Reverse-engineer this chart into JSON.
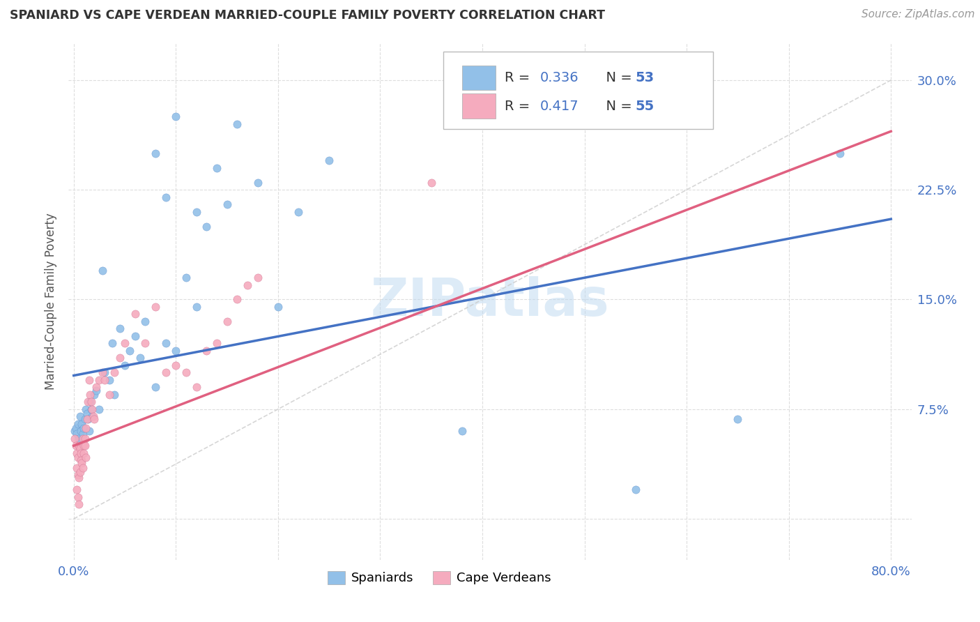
{
  "title": "SPANIARD VS CAPE VERDEAN MARRIED-COUPLE FAMILY POVERTY CORRELATION CHART",
  "source": "Source: ZipAtlas.com",
  "ylabel": "Married-Couple Family Poverty",
  "xlim": [
    -0.005,
    0.82
  ],
  "ylim": [
    -0.028,
    0.325
  ],
  "xtick_vals": [
    0.0,
    0.1,
    0.2,
    0.3,
    0.4,
    0.5,
    0.6,
    0.7,
    0.8
  ],
  "xticklabels": [
    "0.0%",
    "",
    "",
    "",
    "",
    "",
    "",
    "",
    "80.0%"
  ],
  "ytick_vals": [
    0.0,
    0.075,
    0.15,
    0.225,
    0.3
  ],
  "yticklabels_right": [
    "",
    "7.5%",
    "15.0%",
    "22.5%",
    "30.0%"
  ],
  "spaniard_color": "#92C0E8",
  "cape_verdean_color": "#F5ABBE",
  "trend_spaniard_color": "#4472C4",
  "trend_cape_verdean_color": "#E06080",
  "trend_diagonal_color": "#CCCCCC",
  "legend_r_blue": "0.336",
  "legend_n_blue": "53",
  "legend_r_pink": "0.417",
  "legend_n_pink": "55",
  "watermark": "ZIPatlas",
  "blue_trend_x0": 0.0,
  "blue_trend_y0": 0.098,
  "blue_trend_x1": 0.8,
  "blue_trend_y1": 0.205,
  "pink_trend_x0": 0.0,
  "pink_trend_y0": 0.05,
  "pink_trend_x1": 0.8,
  "pink_trend_y1": 0.265,
  "spaniard_x": [
    0.001,
    0.002,
    0.003,
    0.004,
    0.005,
    0.006,
    0.007,
    0.008,
    0.009,
    0.01,
    0.011,
    0.012,
    0.013,
    0.014,
    0.015,
    0.016,
    0.017,
    0.018,
    0.02,
    0.022,
    0.025,
    0.028,
    0.03,
    0.035,
    0.038,
    0.04,
    0.045,
    0.05,
    0.055,
    0.06,
    0.065,
    0.07,
    0.08,
    0.09,
    0.1,
    0.11,
    0.12,
    0.13,
    0.14,
    0.15,
    0.16,
    0.18,
    0.2,
    0.22,
    0.25,
    0.08,
    0.09,
    0.1,
    0.12,
    0.38,
    0.55,
    0.65,
    0.75
  ],
  "spaniard_y": [
    0.06,
    0.062,
    0.058,
    0.065,
    0.055,
    0.07,
    0.06,
    0.065,
    0.058,
    0.062,
    0.068,
    0.075,
    0.072,
    0.068,
    0.06,
    0.08,
    0.075,
    0.07,
    0.085,
    0.088,
    0.075,
    0.17,
    0.1,
    0.095,
    0.12,
    0.085,
    0.13,
    0.105,
    0.115,
    0.125,
    0.11,
    0.135,
    0.09,
    0.12,
    0.115,
    0.165,
    0.145,
    0.2,
    0.24,
    0.215,
    0.27,
    0.23,
    0.145,
    0.21,
    0.245,
    0.25,
    0.22,
    0.275,
    0.21,
    0.06,
    0.02,
    0.068,
    0.25
  ],
  "cape_verdean_x": [
    0.001,
    0.002,
    0.003,
    0.004,
    0.005,
    0.006,
    0.007,
    0.008,
    0.009,
    0.01,
    0.011,
    0.012,
    0.013,
    0.014,
    0.015,
    0.016,
    0.017,
    0.018,
    0.019,
    0.02,
    0.022,
    0.025,
    0.028,
    0.03,
    0.035,
    0.04,
    0.045,
    0.05,
    0.06,
    0.07,
    0.08,
    0.09,
    0.1,
    0.11,
    0.12,
    0.13,
    0.14,
    0.15,
    0.16,
    0.17,
    0.18,
    0.003,
    0.004,
    0.005,
    0.006,
    0.007,
    0.008,
    0.009,
    0.01,
    0.011,
    0.012,
    0.003,
    0.004,
    0.005,
    0.35
  ],
  "cape_verdean_y": [
    0.055,
    0.05,
    0.045,
    0.042,
    0.05,
    0.048,
    0.045,
    0.04,
    0.055,
    0.05,
    0.055,
    0.062,
    0.068,
    0.08,
    0.095,
    0.085,
    0.08,
    0.075,
    0.07,
    0.068,
    0.09,
    0.095,
    0.1,
    0.095,
    0.085,
    0.1,
    0.11,
    0.12,
    0.14,
    0.12,
    0.145,
    0.1,
    0.105,
    0.1,
    0.09,
    0.115,
    0.12,
    0.135,
    0.15,
    0.16,
    0.165,
    0.035,
    0.03,
    0.028,
    0.032,
    0.04,
    0.038,
    0.035,
    0.045,
    0.05,
    0.042,
    0.02,
    0.015,
    0.01,
    0.23
  ]
}
